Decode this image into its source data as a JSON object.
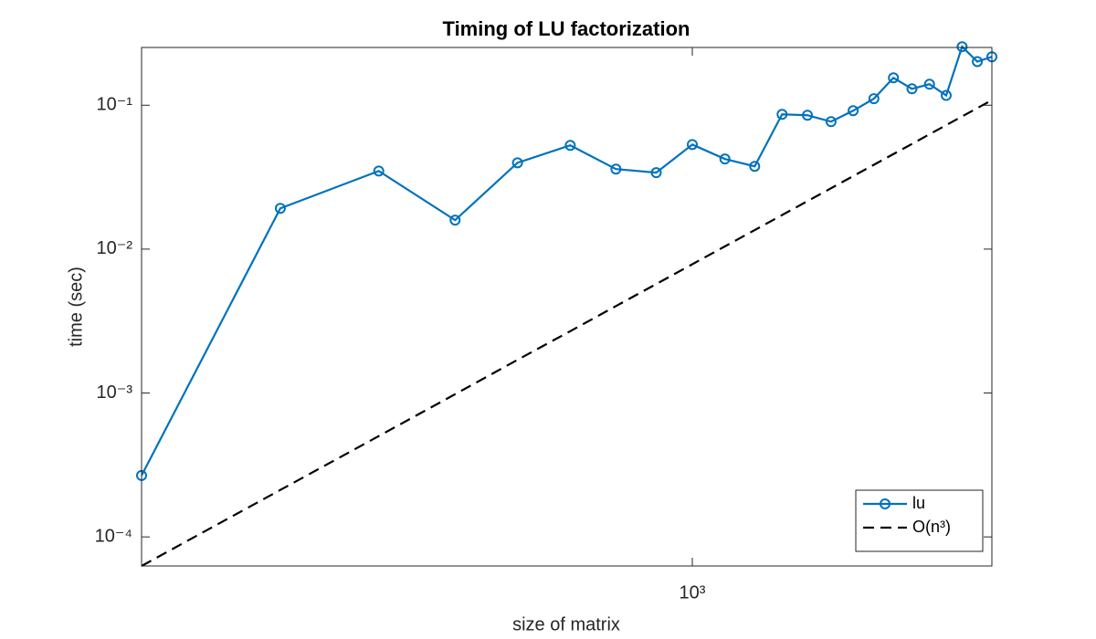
{
  "chart_data": {
    "type": "line",
    "title": "Timing of LU factorization",
    "xlabel": "size of matrix",
    "ylabel": "time (sec)",
    "xscale": "log",
    "yscale": "log",
    "grid": false,
    "legend": "southeast",
    "x": [
      200,
      300,
      400,
      500,
      600,
      700,
      800,
      900,
      1000,
      1100,
      1200,
      1300,
      1400,
      1500,
      1600,
      1700,
      1800,
      1900,
      2000,
      2100,
      2200,
      2300,
      2400
    ],
    "series": [
      {
        "name": "lu",
        "color": "#0072bd",
        "marker": "circle",
        "dash": "solid",
        "values": [
          0.000267,
          0.0192,
          0.0349,
          0.0159,
          0.0398,
          0.0526,
          0.036,
          0.034,
          0.0533,
          0.0423,
          0.0376,
          0.0864,
          0.0852,
          0.0769,
          0.0916,
          0.111,
          0.155,
          0.13,
          0.14,
          0.117,
          0.255,
          0.201,
          0.217
        ]
      },
      {
        "name": "O(n³)",
        "color": "#000000",
        "marker": "none",
        "dash": "dashed",
        "values": [
          6.28e-05,
          0.000212,
          0.000502,
          0.000981,
          0.0017,
          0.00269,
          0.00402,
          0.00572,
          0.00785,
          0.01045,
          0.01356,
          0.01725,
          0.02154,
          0.02649,
          0.03215,
          0.03857,
          0.04578,
          0.05384,
          0.0628,
          0.0727,
          0.0836,
          0.0955,
          0.1085
        ]
      }
    ],
    "xlim": [
      200,
      2400
    ],
    "xticks": [
      {
        "value": 1000,
        "label": "10³"
      }
    ],
    "ylim": [
      6.28e-05,
      0.252
    ],
    "yticks": [
      {
        "value": 0.0001,
        "label": "10⁻⁴"
      },
      {
        "value": 0.001,
        "label": "10⁻³"
      },
      {
        "value": 0.01,
        "label": "10⁻²"
      },
      {
        "value": 0.1,
        "label": "10⁻¹"
      }
    ]
  }
}
